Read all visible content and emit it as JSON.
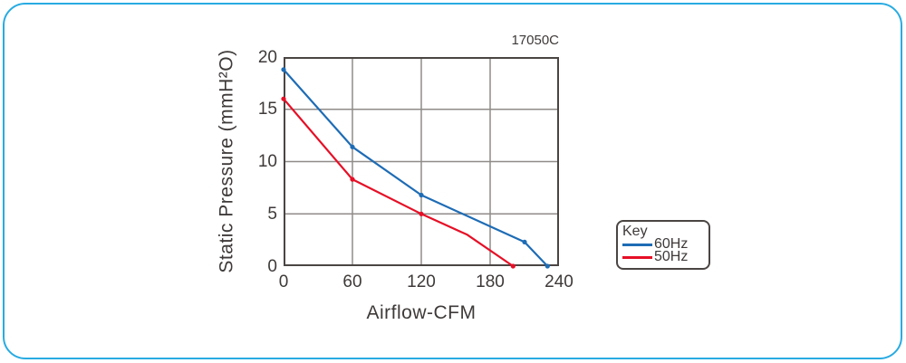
{
  "frame": {
    "color": "#29abe2"
  },
  "model_label": "17050C",
  "colors": {
    "axis": "#4a4543",
    "grid": "#8f8b89",
    "text": "#3e3a39",
    "series_60hz": "#1e6cb5",
    "series_50hz": "#e60f26"
  },
  "chart_data": {
    "type": "line",
    "title": "17050C",
    "xlabel": "Airflow-CFM",
    "ylabel": "Static Pressure (mmH²O)",
    "xlim": [
      0,
      240
    ],
    "ylim": [
      0,
      20
    ],
    "x_ticks": [
      0,
      60,
      120,
      180,
      240
    ],
    "y_ticks": [
      0,
      5,
      10,
      15,
      20
    ],
    "grid": true,
    "legend_position": "right-outside",
    "series": [
      {
        "name": "60Hz",
        "color": "#1e6cb5",
        "points": [
          [
            0,
            18.8
          ],
          [
            60,
            11.4
          ],
          [
            120,
            6.8
          ],
          [
            210,
            2.3
          ],
          [
            230,
            0
          ]
        ],
        "marker_points": [
          [
            0,
            18.8
          ],
          [
            60,
            11.4
          ],
          [
            120,
            6.8
          ],
          [
            210,
            2.3
          ],
          [
            230,
            0
          ]
        ]
      },
      {
        "name": "50Hz",
        "color": "#e60f26",
        "points": [
          [
            0,
            16.0
          ],
          [
            60,
            8.3
          ],
          [
            120,
            5.0
          ],
          [
            160,
            3.0
          ],
          [
            200,
            0
          ]
        ],
        "marker_points": [
          [
            0,
            16.0
          ],
          [
            60,
            8.3
          ],
          [
            120,
            5.0
          ],
          [
            200,
            0
          ]
        ]
      }
    ]
  },
  "legend": {
    "title": "Key",
    "items": [
      {
        "label": "60Hz",
        "color": "#1e6cb5"
      },
      {
        "label": "50Hz",
        "color": "#e60f26"
      }
    ]
  }
}
